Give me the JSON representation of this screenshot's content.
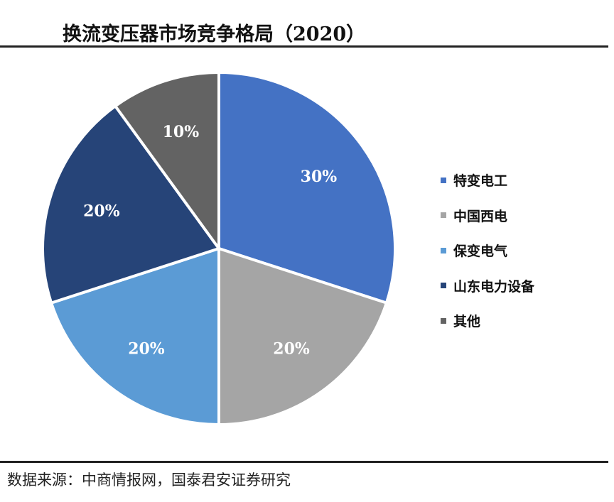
{
  "title": "换流变压器市场竞争格局（2020）",
  "source": "数据来源：中商情报网，国泰君安证券研究",
  "chart_data": {
    "type": "pie",
    "title": "换流变压器市场竞争格局（2020）",
    "categories": [
      "特变电工",
      "中国西电",
      "保变电气",
      "山东电力设备",
      "其他"
    ],
    "values": [
      30,
      20,
      20,
      20,
      10
    ],
    "labels": [
      "30%",
      "20%",
      "20%",
      "20%",
      "10%"
    ],
    "colors": [
      "#4472C4",
      "#A5A5A5",
      "#5B9BD5",
      "#264478",
      "#636363"
    ],
    "legend_position": "right"
  }
}
